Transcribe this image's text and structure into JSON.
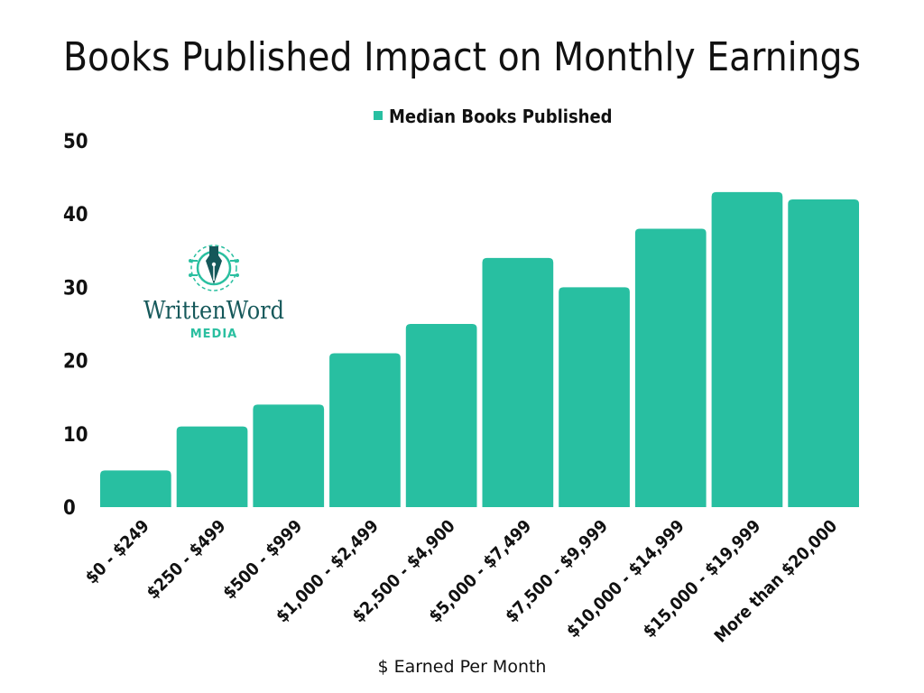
{
  "colors": {
    "bar": "#28bfa1",
    "text": "#111111",
    "logo_dark": "#15585a",
    "logo_accent": "#2abfa0"
  },
  "logo": {
    "icon": "fountain-pen-circuit-icon",
    "word": "WrittenWord",
    "sub": "MEDIA"
  },
  "chart_data": {
    "type": "bar",
    "title": "Books Published Impact on Monthly Earnings",
    "xlabel": "$ Earned Per Month",
    "ylabel": "",
    "ylim": [
      0,
      50
    ],
    "yticks": [
      0,
      10,
      20,
      30,
      40,
      50
    ],
    "grid": false,
    "legend": "top-center",
    "categories": [
      "$0 - $249",
      "$250 - $499",
      "$500 - $999",
      "$1,000 - $2,499",
      "$2,500 - $4,900",
      "$5,000 - $7,499",
      "$7,500 - $9,999",
      "$10,000 - $14,999",
      "$15,000 - $19,999",
      "More than $20,000"
    ],
    "series": [
      {
        "name": "Median Books Published",
        "values": [
          5,
          11,
          14,
          21,
          25,
          34,
          30,
          38,
          43,
          42
        ]
      }
    ]
  }
}
